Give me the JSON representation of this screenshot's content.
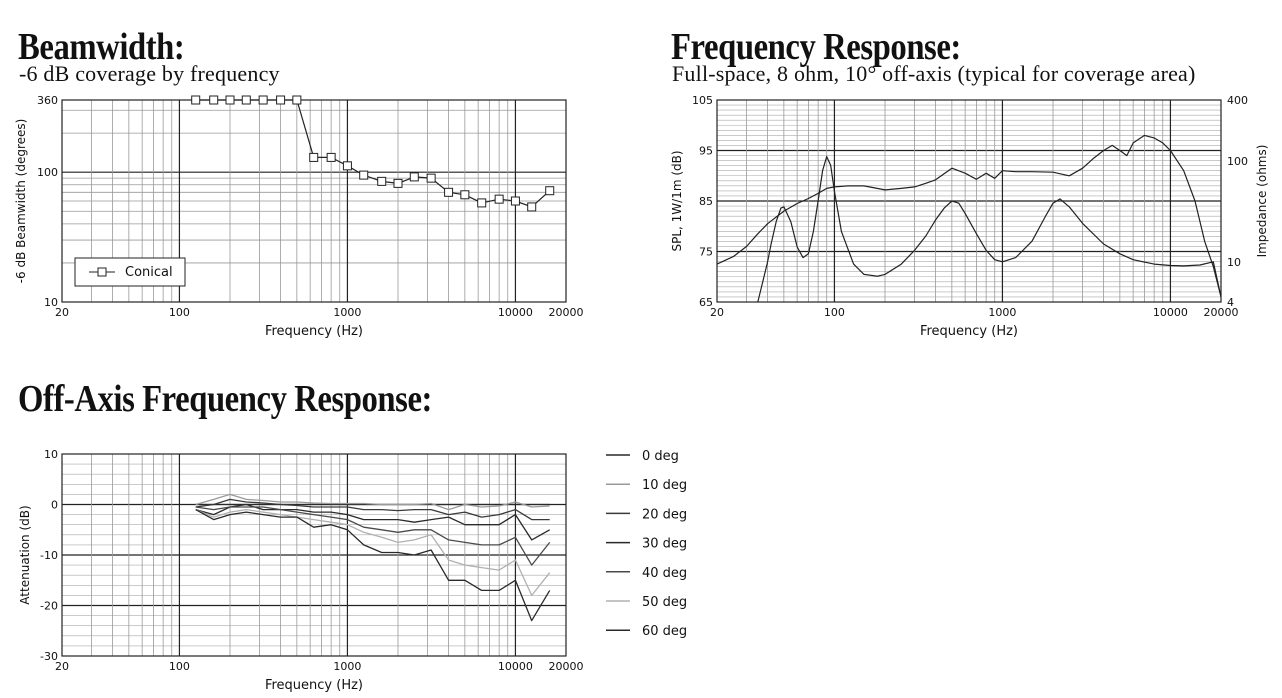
{
  "beamwidth": {
    "heading": "Beamwidth:",
    "subheading": "-6 dB coverage by frequency"
  },
  "frequency_response": {
    "heading": "Frequency Response:",
    "subheading": "Full-space, 8 ohm, 10° off-axis (typical for coverage area)"
  },
  "off_axis": {
    "heading": "Off-Axis Frequency Response:"
  },
  "chart_data": [
    {
      "type": "line",
      "xlabel": "Frequency (Hz)",
      "ylabel": "-6 dB Beamwidth (degrees)",
      "xscale": "log",
      "yscale": "log",
      "xlim": [
        20,
        20000
      ],
      "ylim": [
        10,
        360
      ],
      "xticks": [
        20,
        100,
        1000,
        10000,
        20000
      ],
      "xtick_labels": [
        "20",
        "100",
        "1000",
        "10000",
        "20000"
      ],
      "yticks": [
        10,
        100,
        360
      ],
      "ytick_labels": [
        "10",
        "100",
        "360"
      ],
      "grid": true,
      "legend": "bottom-left",
      "series": [
        {
          "name": "Conical",
          "marker": "square",
          "x": [
            125,
            160,
            200,
            250,
            315,
            400,
            500,
            630,
            800,
            1000,
            1250,
            1600,
            2000,
            2500,
            3150,
            4000,
            5000,
            6300,
            8000,
            10000,
            12500,
            16000
          ],
          "y": [
            360,
            360,
            360,
            360,
            360,
            360,
            360,
            130,
            130,
            112,
            95,
            85,
            82,
            92,
            90,
            70,
            67,
            58,
            62,
            60,
            54,
            72
          ]
        }
      ]
    },
    {
      "type": "line",
      "xlabel": "Frequency (Hz)",
      "ylabel": "SPL, 1W/1m (dB)",
      "y2label": "Impedance (ohms)",
      "xscale": "log",
      "xlim": [
        20,
        20000
      ],
      "ylim": [
        65,
        105
      ],
      "y2scale": "log",
      "y2lim": [
        4,
        400
      ],
      "xticks": [
        20,
        100,
        1000,
        10000,
        20000
      ],
      "xtick_labels": [
        "20",
        "100",
        "1000",
        "10000",
        "20000"
      ],
      "yticks": [
        65,
        75,
        85,
        95,
        105
      ],
      "ytick_labels": [
        "65",
        "75",
        "85",
        "95",
        "105"
      ],
      "y2ticks": [
        4,
        10,
        100,
        400
      ],
      "y2tick_labels": [
        "4",
        "10",
        "100",
        "400"
      ],
      "grid": true,
      "series": [
        {
          "axis": "left",
          "x": [
            20,
            25,
            30,
            35,
            40,
            50,
            60,
            70,
            80,
            90,
            100,
            120,
            150,
            200,
            250,
            300,
            350,
            400,
            500,
            600,
            700,
            800,
            900,
            1000,
            1200,
            1500,
            2000,
            2500,
            3000,
            3500,
            4000,
            4500,
            5000,
            5500,
            6000,
            7000,
            8000,
            9000,
            10000,
            12000,
            14000,
            16000,
            18000,
            20000
          ],
          "y": [
            72.5,
            74,
            76,
            78.5,
            80.5,
            83,
            84.5,
            85.5,
            86.5,
            87.5,
            87.8,
            88,
            88,
            87.2,
            87.5,
            87.8,
            88.5,
            89.2,
            91.5,
            90.5,
            89.3,
            90.5,
            89.5,
            91,
            90.8,
            90.8,
            90.7,
            90,
            91.5,
            93.5,
            95,
            96,
            95,
            94,
            96.5,
            98,
            97.5,
            96.5,
            95,
            91,
            85,
            77,
            72,
            66
          ]
        },
        {
          "axis": "right",
          "x": [
            35,
            38,
            40,
            42,
            45,
            48,
            50,
            55,
            60,
            65,
            70,
            75,
            80,
            85,
            90,
            95,
            100,
            110,
            130,
            150,
            180,
            200,
            250,
            300,
            350,
            400,
            450,
            500,
            550,
            600,
            700,
            800,
            900,
            1000,
            1200,
            1500,
            1800,
            2000,
            2200,
            2500,
            3000,
            4000,
            5000,
            6000,
            8000,
            10000,
            12000,
            15000,
            18000,
            20000
          ],
          "y": [
            4,
            7,
            10,
            15,
            25,
            34,
            35,
            25,
            14,
            11,
            12,
            20,
            40,
            80,
            110,
            90,
            50,
            20,
            9.5,
            7.5,
            7.2,
            7.5,
            9.5,
            13,
            18,
            26,
            34,
            40,
            38,
            30,
            19,
            13,
            10.5,
            10,
            11,
            16,
            28,
            38,
            42,
            35,
            24,
            15,
            12,
            10.5,
            9.5,
            9.2,
            9.1,
            9.3,
            10,
            4.5
          ]
        }
      ]
    },
    {
      "type": "line",
      "xlabel": "Frequency (Hz)",
      "ylabel": "Attenuation (dB)",
      "xscale": "log",
      "xlim": [
        20,
        20000
      ],
      "ylim": [
        -30,
        10
      ],
      "xticks": [
        20,
        100,
        1000,
        10000,
        20000
      ],
      "xtick_labels": [
        "20",
        "100",
        "1000",
        "10000",
        "20000"
      ],
      "yticks": [
        -30,
        -20,
        -10,
        0,
        10
      ],
      "ytick_labels": [
        "-30",
        "-20",
        "-10",
        "0",
        "10"
      ],
      "grid": true,
      "legend": "right",
      "x": [
        125,
        160,
        200,
        250,
        315,
        400,
        500,
        630,
        800,
        1000,
        1250,
        1600,
        2000,
        2500,
        3150,
        4000,
        5000,
        6300,
        8000,
        10000,
        12500,
        16000
      ],
      "series": [
        {
          "name": "0 deg",
          "color": "#2a2a2a",
          "values": [
            0,
            0,
            0,
            0,
            0,
            0,
            0,
            0,
            0,
            0,
            0,
            0,
            0,
            0,
            0,
            0,
            0,
            0,
            0,
            0,
            0,
            0
          ]
        },
        {
          "name": "10 deg",
          "color": "#9a9a9a",
          "values": [
            0,
            1,
            2,
            1,
            0.8,
            0.5,
            0.5,
            0.3,
            0.2,
            0.2,
            0.2,
            0,
            0,
            0,
            0.2,
            -1,
            0,
            -0.5,
            -0.3,
            0.5,
            -0.5,
            -0.3
          ]
        },
        {
          "name": "20 deg",
          "color": "#3a3a3a",
          "values": [
            -0.5,
            0,
            1,
            0.5,
            0.3,
            0,
            -0.2,
            -0.5,
            -0.5,
            -0.5,
            -1,
            -1,
            -1.2,
            -1,
            -1,
            -2,
            -1.5,
            -2.5,
            -2,
            -1,
            -3,
            -3
          ]
        },
        {
          "name": "30 deg",
          "color": "#2a2a2a",
          "values": [
            -1,
            -2,
            -0.5,
            0,
            -1,
            -1,
            -1,
            -1.5,
            -1.5,
            -2,
            -3,
            -3,
            -3,
            -3.5,
            -3,
            -2.5,
            -4,
            -4,
            -4,
            -2,
            -7,
            -5
          ]
        },
        {
          "name": "40 deg",
          "color": "#4a4a4a",
          "values": [
            -0.5,
            -1,
            -0.5,
            -0.5,
            -0.5,
            -1,
            -1.5,
            -2,
            -2.5,
            -3,
            -4.5,
            -5,
            -5.5,
            -5,
            -5,
            -7,
            -7.5,
            -8,
            -8,
            -6.5,
            -12,
            -7.5
          ]
        },
        {
          "name": "50 deg",
          "color": "#b0b0b0",
          "values": [
            -1,
            -2.5,
            -1.5,
            -1,
            -1.5,
            -2,
            -2.5,
            -3,
            -3.5,
            -4,
            -5.5,
            -6.5,
            -7.5,
            -7,
            -6,
            -11,
            -12,
            -12.5,
            -13,
            -11,
            -18,
            -13.5
          ]
        },
        {
          "name": "60 deg",
          "color": "#2a2a2a",
          "values": [
            -1,
            -3,
            -2,
            -1.5,
            -2,
            -2.5,
            -2.5,
            -4.5,
            -4,
            -5,
            -8,
            -9.5,
            -9.5,
            -10,
            -9,
            -15,
            -15,
            -17,
            -17,
            -15,
            -23,
            -17
          ]
        }
      ]
    }
  ]
}
